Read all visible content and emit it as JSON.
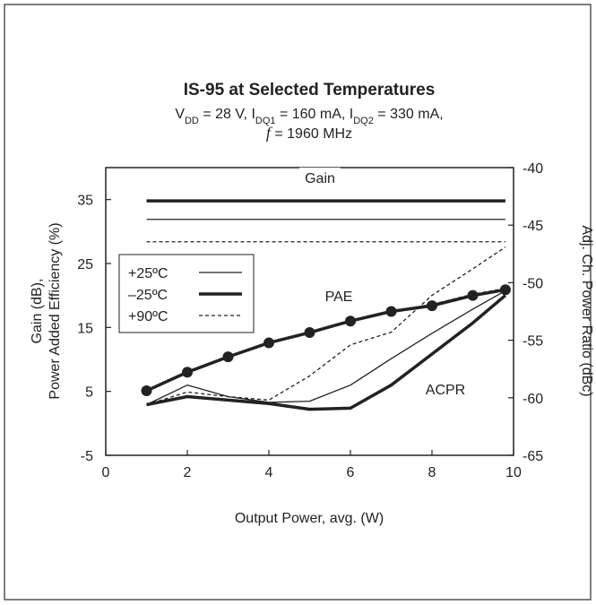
{
  "chart_data": {
    "type": "line",
    "title": "IS-95 at Selected Temperatures",
    "subtitle_lines": [
      [
        {
          "text": "V"
        },
        {
          "text": "DD",
          "sub": true
        },
        {
          "text": " = 28 V, I"
        },
        {
          "text": "DQ1",
          "sub": true
        },
        {
          "text": " = 160 mA, I"
        },
        {
          "text": "DQ2",
          "sub": true
        },
        {
          "text": " = 330 mA,"
        }
      ],
      [
        {
          "text": "f",
          "italic": true
        },
        {
          "text": " = 1960 MHz"
        }
      ]
    ],
    "xlabel": "Output Power, avg. (W)",
    "ylabel_lines": [
      "Gain (dB),",
      "Power Added Efficiency (%)"
    ],
    "y2label": "Adj. Ch. Power Ratio (dBc)",
    "annotations": [
      "Gain",
      "PAE",
      "ACPR"
    ],
    "xlim": [
      0,
      10
    ],
    "xticks": [
      0,
      2,
      4,
      6,
      8,
      10
    ],
    "ylim": [
      -5,
      40
    ],
    "yticks": [
      -5,
      5,
      15,
      25,
      35
    ],
    "y2lim": [
      -65,
      -40
    ],
    "y2ticks": [
      -65,
      -60,
      -55,
      -50,
      -45,
      -40
    ],
    "x": [
      1,
      2,
      3,
      4,
      5,
      6,
      7,
      8,
      9,
      9.8
    ],
    "series": [
      {
        "name": "+25ºC",
        "color": "#222222",
        "width": 1.3,
        "dash": "none",
        "markers": false,
        "gain": [
          31.9,
          31.9,
          31.9,
          31.9,
          31.9,
          31.9,
          31.9,
          31.9,
          31.9,
          31.9
        ],
        "pae": [
          5.1,
          8,
          10.4,
          12.6,
          14.2,
          16,
          17.5,
          18.6,
          20.1,
          21
        ],
        "acpr": [
          -60.6,
          -58.9,
          -59.9,
          -60.4,
          -60.3,
          -58.9,
          -56.6,
          -54.4,
          -52.3,
          -50.7
        ]
      },
      {
        "name": "–25ºC",
        "color": "#222222",
        "width": 3.5,
        "dash": "none",
        "markers": true,
        "gain": [
          34.8,
          34.8,
          34.8,
          34.8,
          34.8,
          34.8,
          34.8,
          34.8,
          34.8,
          34.8
        ],
        "pae": [
          5.1,
          8,
          10.4,
          12.6,
          14.2,
          16,
          17.5,
          18.4,
          20,
          20.9
        ],
        "acpr": [
          -60.6,
          -59.9,
          -60.2,
          -60.5,
          -61,
          -60.9,
          -58.9,
          -56.2,
          -53.5,
          -51.1
        ]
      },
      {
        "name": "+90ºC",
        "color": "#222222",
        "width": 1.3,
        "dash": "4,3",
        "markers": false,
        "gain": [
          28.4,
          28.4,
          28.4,
          28.4,
          28.4,
          28.4,
          28.4,
          28.4,
          28.4,
          28.4
        ],
        "pae": [
          5,
          7.9,
          10.3,
          12.5,
          14.2,
          16.1,
          17.6,
          18.6,
          20.2,
          21.1
        ],
        "acpr": [
          -60.6,
          -59.5,
          -59.9,
          -60.2,
          -58.1,
          -55.4,
          -54.3,
          -51.1,
          -48.8,
          -46.9
        ]
      }
    ]
  }
}
